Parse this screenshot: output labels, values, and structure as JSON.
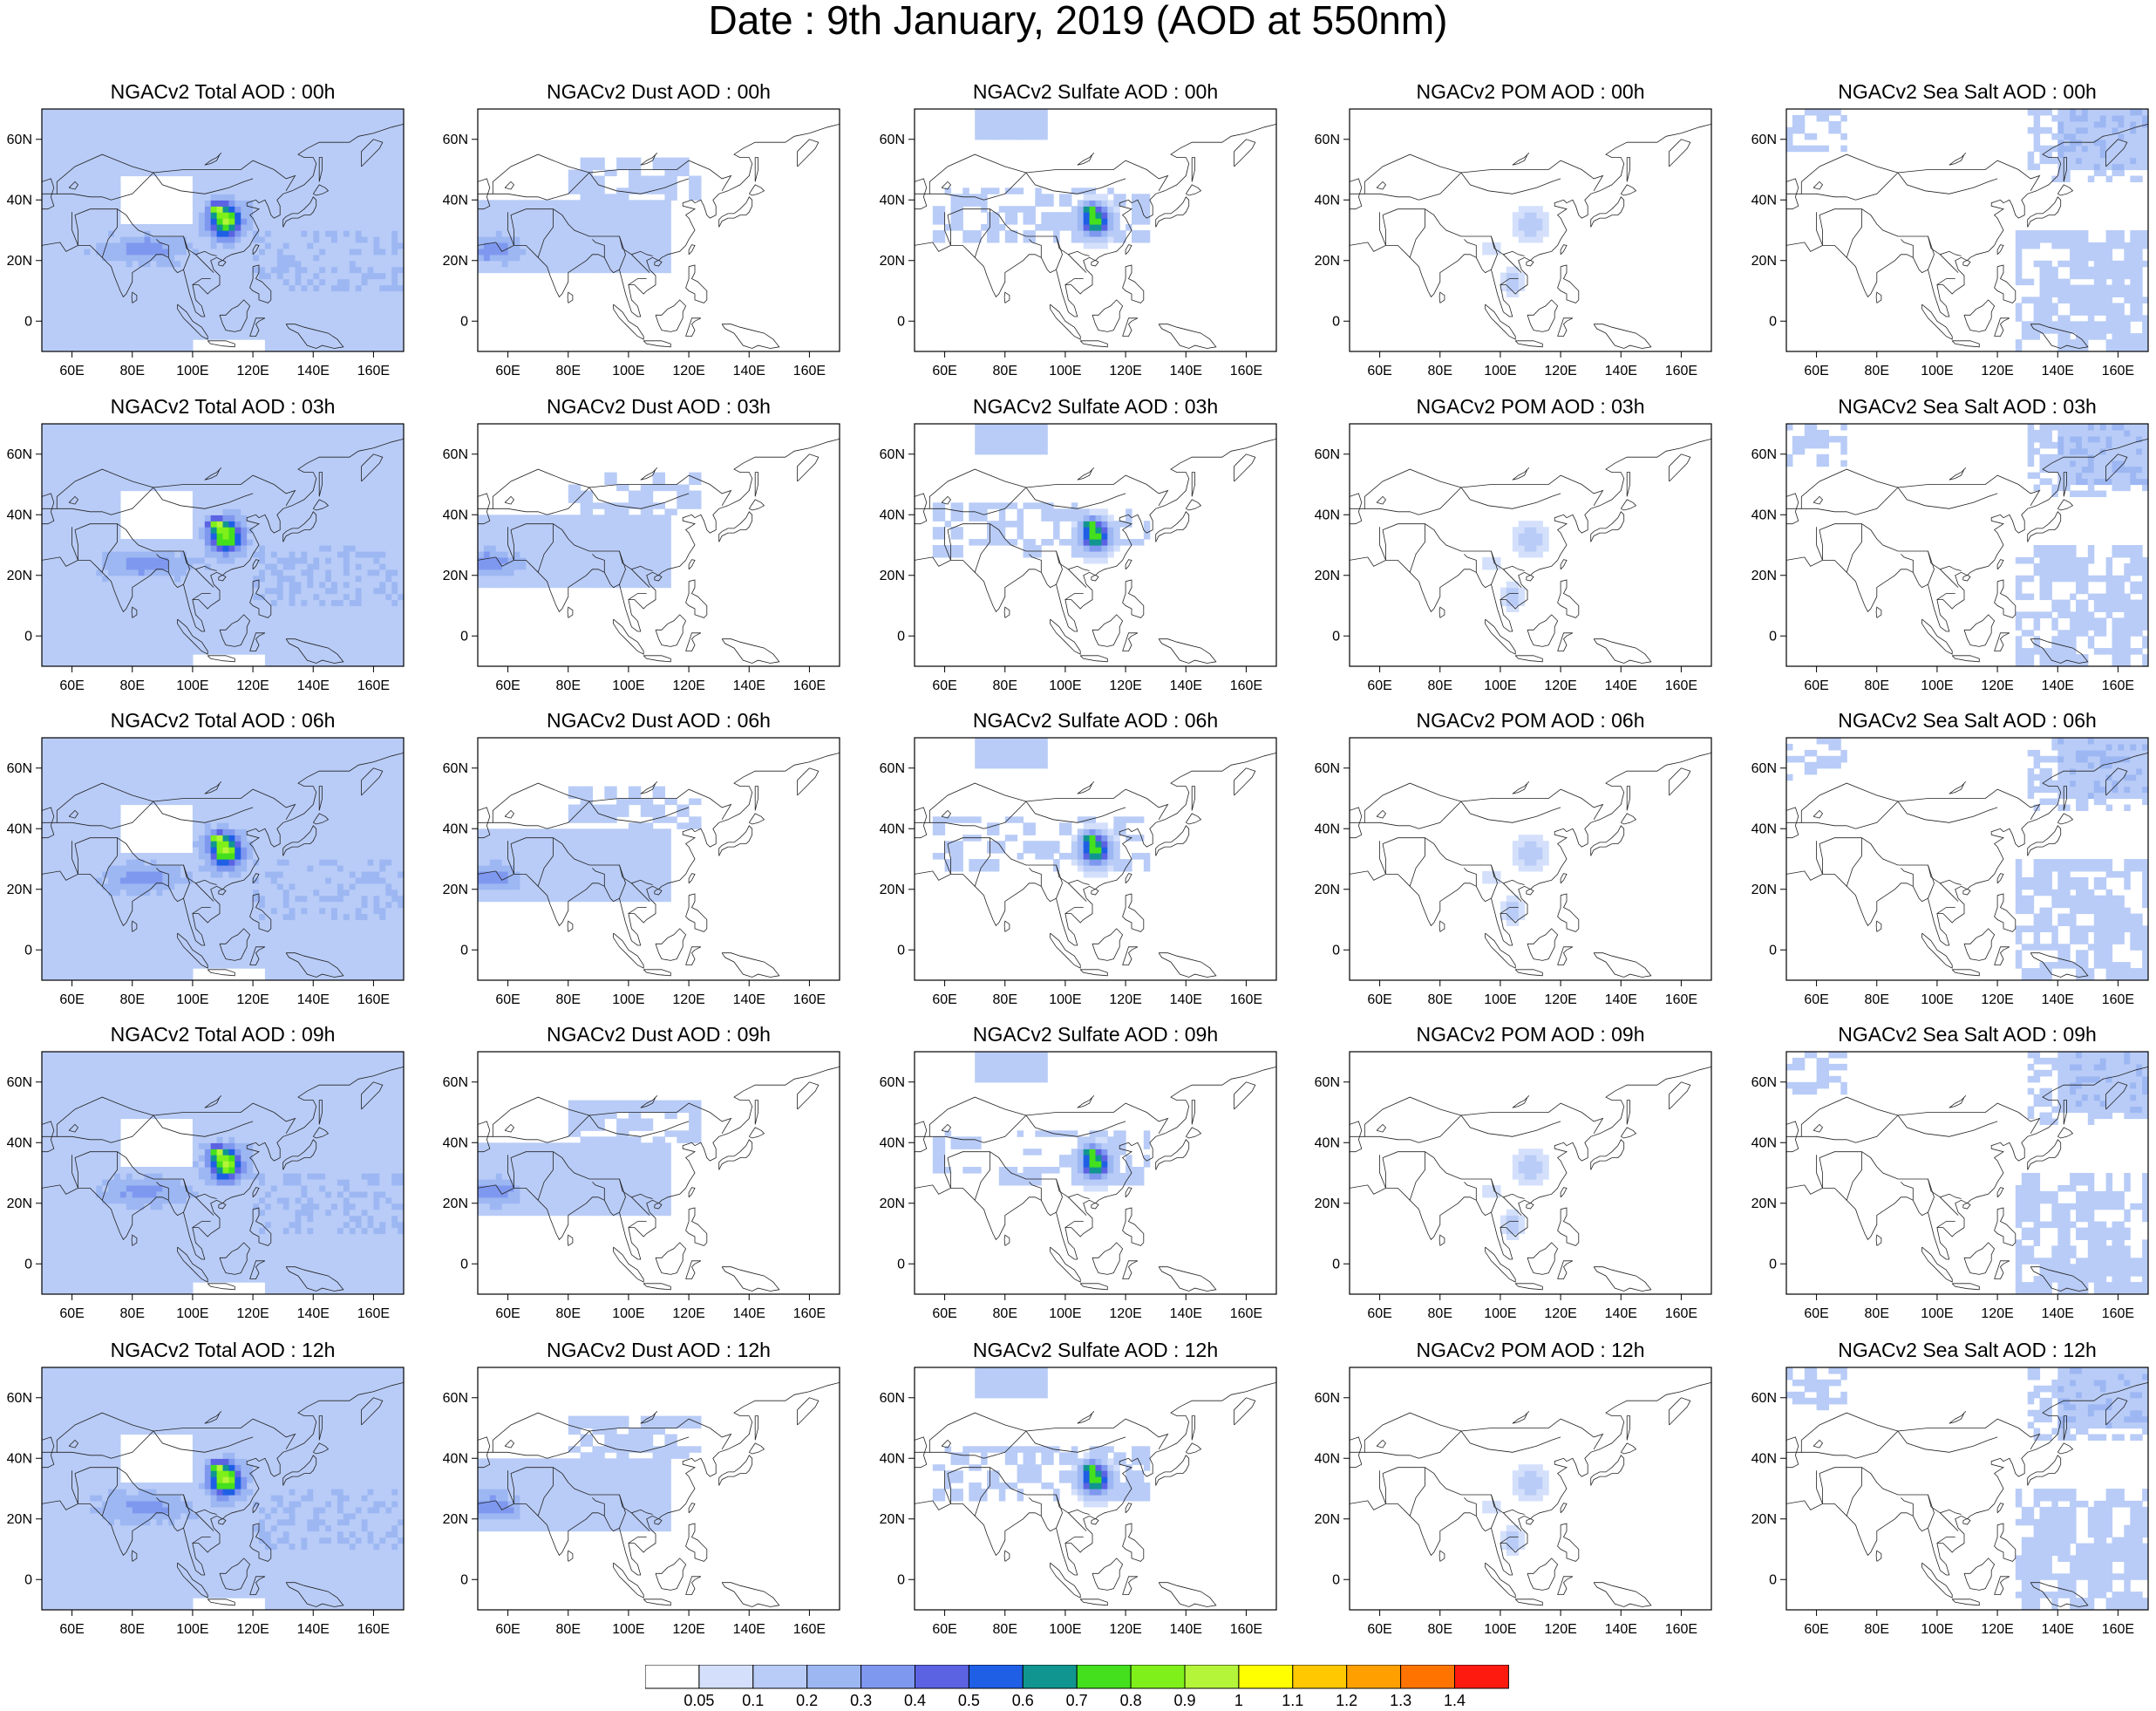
{
  "title": "Date : 9th January, 2019 (AOD at 550nm)",
  "panels": [
    [
      "NGACv2 Total AOD : 00h",
      "NGACv2 Dust AOD : 00h",
      "NGACv2 Sulfate AOD : 00h",
      "NGACv2 POM AOD : 00h",
      "NGACv2 Sea Salt AOD : 00h"
    ],
    [
      "NGACv2 Total AOD : 03h",
      "NGACv2 Dust AOD : 03h",
      "NGACv2 Sulfate AOD : 03h",
      "NGACv2 POM AOD : 03h",
      "NGACv2 Sea Salt AOD : 03h"
    ],
    [
      "NGACv2 Total AOD : 06h",
      "NGACv2 Dust AOD : 06h",
      "NGACv2 Sulfate AOD : 06h",
      "NGACv2 POM AOD : 06h",
      "NGACv2 Sea Salt AOD : 06h"
    ],
    [
      "NGACv2 Total AOD : 09h",
      "NGACv2 Dust AOD : 09h",
      "NGACv2 Sulfate AOD : 09h",
      "NGACv2 POM AOD : 09h",
      "NGACv2 Sea Salt  AOD : 09h"
    ],
    [
      "NGACv2 Total AOD  : 12h",
      "NGACv2 Dust AOD : 12h",
      "NGACv2 Sulfate AOD : 12h",
      "NGACv2 POM  AOD : 12h",
      "NGACv2 Sea Salt  AOD : 12h"
    ]
  ],
  "map": {
    "lon_range": [
      50,
      170
    ],
    "lat_range": [
      -10,
      70
    ],
    "x_ticks": [
      60,
      80,
      100,
      120,
      140,
      160
    ],
    "x_tick_labels": [
      "60E",
      "80E",
      "100E",
      "120E",
      "140E",
      "160E"
    ],
    "y_ticks": [
      0,
      20,
      40,
      60
    ],
    "y_tick_labels": [
      "0",
      "20N",
      "40N",
      "60N"
    ]
  },
  "colorbar": {
    "labels": [
      "0.05",
      "0.1",
      "0.2",
      "0.3",
      "0.4",
      "0.5",
      "0.6",
      "0.7",
      "0.8",
      "0.9",
      "1",
      "1.1",
      "1.2",
      "1.3",
      "1.4"
    ],
    "colors": [
      "#ffffff",
      "#d4e0fb",
      "#b9ccf7",
      "#9db7f3",
      "#7f98ef",
      "#5b63e3",
      "#1e5fe6",
      "#119590",
      "#44e01e",
      "#7ff01a",
      "#b4f53a",
      "#ffff00",
      "#ffc800",
      "#ffa000",
      "#ff7400",
      "#ff1a10"
    ]
  }
}
